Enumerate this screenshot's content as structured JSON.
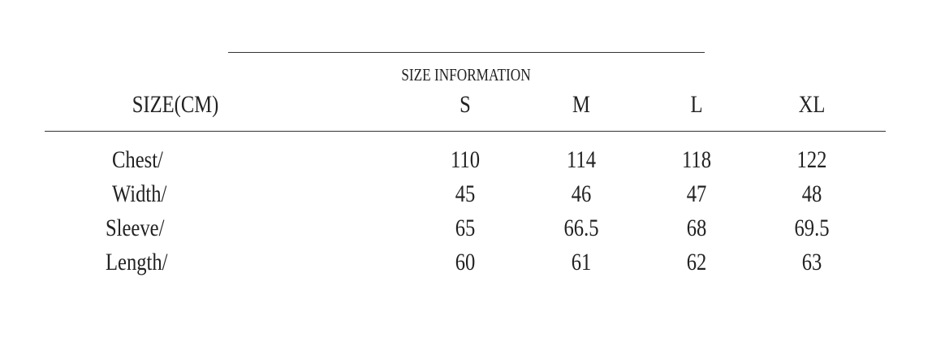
{
  "title": "SIZE INFORMATION",
  "header": {
    "label": "SIZE(CM)",
    "sizes": [
      "S",
      "M",
      "L",
      "XL"
    ]
  },
  "rows": [
    {
      "label": "Chest/",
      "values": [
        "110",
        "114",
        "118",
        "122"
      ]
    },
    {
      "label": "Width/",
      "values": [
        "45",
        "46",
        "47",
        "48"
      ]
    },
    {
      "label": "Sleeve/",
      "values": [
        "65",
        "66.5",
        "68",
        "69.5"
      ]
    },
    {
      "label": "Length/",
      "values": [
        "60",
        "61",
        "62",
        "63"
      ]
    }
  ]
}
